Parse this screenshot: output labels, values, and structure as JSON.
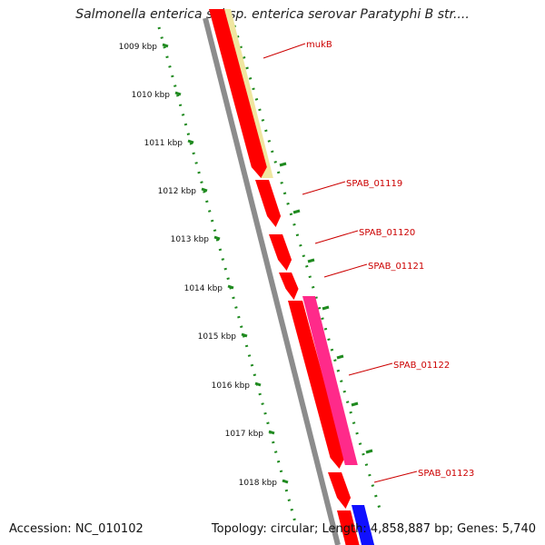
{
  "title": "Salmonella enterica subsp. enterica serovar Paratyphi B str....",
  "accession": "Accession: NC_010102",
  "summary": "Topology: circular; Length: 4,858,887 bp; Genes: 5,740",
  "colors": {
    "tick": "#1f8a1f",
    "backbone": "#8c8c8c",
    "gene_red": "#ff0000",
    "gene_yellow": "#f0e6a0",
    "gene_magenta": "#ff2a8a",
    "gene_blue": "#1010ff",
    "label": "#cc0000"
  },
  "scale_labels": [
    "1009 kbp",
    "1010 kbp",
    "1011 kbp",
    "1012 kbp",
    "1013 kbp",
    "1014 kbp",
    "1015 kbp",
    "1016 kbp",
    "1017 kbp",
    "1018 kbp"
  ],
  "gene_labels": [
    "mukB",
    "SPAB_01119",
    "SPAB_01120",
    "SPAB_01121",
    "SPAB_01122",
    "SPAB_01123"
  ]
}
